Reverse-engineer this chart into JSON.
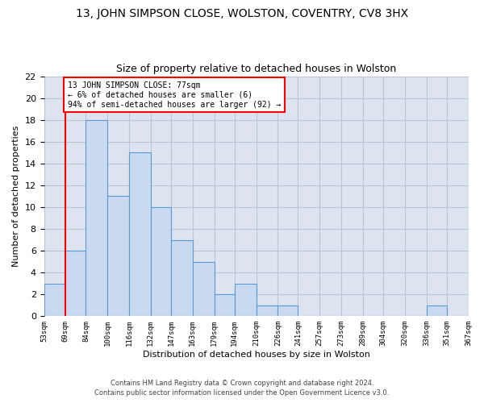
{
  "title": "13, JOHN SIMPSON CLOSE, WOLSTON, COVENTRY, CV8 3HX",
  "subtitle": "Size of property relative to detached houses in Wolston",
  "xlabel": "Distribution of detached houses by size in Wolston",
  "ylabel": "Number of detached properties",
  "footer_line1": "Contains HM Land Registry data © Crown copyright and database right 2024.",
  "footer_line2": "Contains public sector information licensed under the Open Government Licence v3.0.",
  "bin_edges": [
    53,
    69,
    84,
    100,
    116,
    132,
    147,
    163,
    179,
    194,
    210,
    226,
    241,
    257,
    273,
    289,
    304,
    320,
    336,
    351,
    367
  ],
  "bar_heights": [
    3,
    6,
    18,
    11,
    15,
    10,
    7,
    5,
    2,
    3,
    1,
    1,
    0,
    0,
    0,
    0,
    0,
    0,
    1,
    0
  ],
  "bar_color": "#c9d9f0",
  "bar_edge_color": "#5b9bd5",
  "property_bin_edge": 69,
  "annotation_line1": "13 JOHN SIMPSON CLOSE: 77sqm",
  "annotation_line2": "← 6% of detached houses are smaller (6)",
  "annotation_line3": "94% of semi-detached houses are larger (92) →",
  "annotation_box_color": "white",
  "annotation_box_edge": "red",
  "redline_color": "red",
  "ylim": [
    0,
    22
  ],
  "yticks": [
    0,
    2,
    4,
    6,
    8,
    10,
    12,
    14,
    16,
    18,
    20,
    22
  ],
  "grid_color": "#b8c4d8",
  "background_color": "#dde4f0"
}
